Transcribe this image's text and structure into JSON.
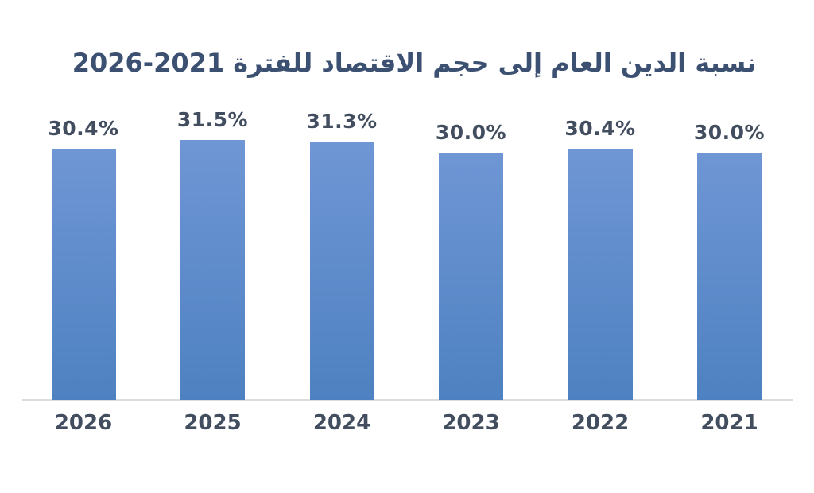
{
  "title": {
    "arabic": "نسبة الدين العام إلى حجم الاقتصاد للفترة",
    "period": "2026-2021"
  },
  "chart_data": {
    "type": "bar",
    "title": "نسبة الدين العام إلى حجم الاقتصاد للفترة 2026-2021",
    "title_translation_note": "Ratio of public debt to the size of the economy for the period 2021-2026",
    "categories": [
      "2026",
      "2025",
      "2024",
      "2023",
      "2022",
      "2021"
    ],
    "values": [
      30.4,
      31.5,
      31.3,
      30.0,
      30.4,
      30.0
    ],
    "value_labels": [
      "30.4%",
      "31.5%",
      "31.3%",
      "30.0%",
      "30.4%",
      "30.0%"
    ],
    "unit": "%",
    "xlabel": "",
    "ylabel": "",
    "ylim": [
      0,
      33.5
    ],
    "grid": false,
    "legend": false,
    "y_axis_visible": false,
    "data_labels_position": "above-bars",
    "category_order_note": "years shown descending left-to-right (RTL chart)"
  },
  "colors": {
    "background": "#ffffff",
    "title": "#3c5172",
    "label": "#424e5f",
    "axis_line": "#dcdcdc",
    "bar_top": "#6f96d5",
    "bar_bottom": "#4e81c1"
  }
}
